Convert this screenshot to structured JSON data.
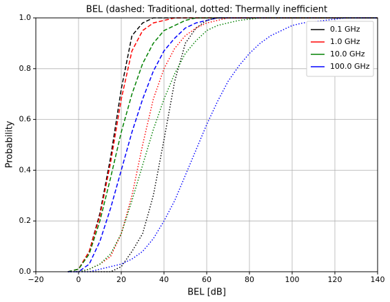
{
  "chart_data": {
    "type": "line",
    "title": "BEL (dashed: Traditional, dotted: Thermally inefficient",
    "x_label": "BEL [dB]",
    "y_label": "Probability",
    "xlim": [
      -20,
      140
    ],
    "xticks": [
      {
        "value": -20,
        "label": "−20"
      },
      0,
      20,
      40,
      60,
      80,
      100,
      120,
      140
    ],
    "ylim": [
      0,
      1
    ],
    "yticks": [
      {
        "value": 0,
        "label": "0.0"
      },
      0.2,
      0.4,
      0.6,
      0.8,
      {
        "value": 1,
        "label": "1.0"
      }
    ],
    "grid": true,
    "legend_position": "upper-right",
    "legend": [
      {
        "name": "0.1 GHz",
        "color": "#000000"
      },
      {
        "name": "1.0 GHz",
        "color": "#ff0000"
      },
      {
        "name": "10.0 GHz",
        "color": "#008000"
      },
      {
        "name": "100.0 GHz",
        "color": "#0000ff"
      }
    ],
    "x": [
      -5,
      0,
      5,
      10,
      15,
      20,
      25,
      30,
      35,
      40,
      45,
      50,
      55,
      60,
      65,
      70,
      75,
      80,
      85,
      90,
      95,
      100,
      105,
      110,
      115,
      120,
      125,
      130,
      135,
      140
    ],
    "series": [
      {
        "color": "#000000",
        "style": "dashed",
        "values": [
          0,
          0.01,
          0.08,
          0.23,
          0.45,
          0.72,
          0.93,
          0.98,
          1,
          1,
          1,
          1,
          1,
          1,
          1,
          1,
          1,
          1,
          1,
          1,
          1,
          1,
          1,
          1,
          1,
          1,
          1,
          1,
          1,
          1
        ]
      },
      {
        "color": "#ff0000",
        "style": "dashed",
        "values": [
          0,
          0.01,
          0.08,
          0.22,
          0.43,
          0.68,
          0.87,
          0.95,
          0.98,
          0.99,
          1,
          1,
          1,
          1,
          1,
          1,
          1,
          1,
          1,
          1,
          1,
          1,
          1,
          1,
          1,
          1,
          1,
          1,
          1,
          1
        ]
      },
      {
        "color": "#008000",
        "style": "dashed",
        "values": [
          0,
          0.01,
          0.07,
          0.2,
          0.37,
          0.55,
          0.7,
          0.82,
          0.9,
          0.95,
          0.97,
          0.99,
          1,
          1,
          1,
          1,
          1,
          1,
          1,
          1,
          1,
          1,
          1,
          1,
          1,
          1,
          1,
          1,
          1,
          1
        ]
      },
      {
        "color": "#0000ff",
        "style": "dashed",
        "values": [
          0,
          0,
          0.03,
          0.12,
          0.25,
          0.4,
          0.55,
          0.68,
          0.79,
          0.87,
          0.92,
          0.96,
          0.98,
          0.99,
          1,
          1,
          1,
          1,
          1,
          1,
          1,
          1,
          1,
          1,
          1,
          1,
          1,
          1,
          1,
          1
        ]
      },
      {
        "color": "#000000",
        "style": "dotted",
        "values": [
          0,
          0,
          0,
          0,
          0,
          0.02,
          0.08,
          0.15,
          0.3,
          0.52,
          0.75,
          0.9,
          0.96,
          0.99,
          1,
          1,
          1,
          1,
          1,
          1,
          1,
          1,
          1,
          1,
          1,
          1,
          1,
          1,
          1,
          1
        ]
      },
      {
        "color": "#ff0000",
        "style": "dotted",
        "values": [
          0,
          0,
          0.01,
          0.03,
          0.06,
          0.15,
          0.3,
          0.5,
          0.68,
          0.8,
          0.88,
          0.93,
          0.96,
          0.98,
          0.99,
          1,
          1,
          1,
          1,
          1,
          1,
          1,
          1,
          1,
          1,
          1,
          1,
          1,
          1,
          1
        ]
      },
      {
        "color": "#008000",
        "style": "dotted",
        "values": [
          0,
          0,
          0.01,
          0.03,
          0.07,
          0.15,
          0.28,
          0.42,
          0.56,
          0.68,
          0.78,
          0.86,
          0.91,
          0.95,
          0.97,
          0.98,
          0.99,
          0.995,
          1,
          1,
          1,
          1,
          1,
          1,
          1,
          1,
          1,
          1,
          1,
          1
        ]
      },
      {
        "color": "#0000ff",
        "style": "dotted",
        "values": [
          0,
          0,
          0,
          0.01,
          0.02,
          0.03,
          0.05,
          0.08,
          0.13,
          0.2,
          0.28,
          0.38,
          0.48,
          0.58,
          0.67,
          0.75,
          0.81,
          0.86,
          0.9,
          0.93,
          0.95,
          0.97,
          0.98,
          0.985,
          0.99,
          0.995,
          1,
          1,
          1,
          1
        ]
      }
    ]
  }
}
